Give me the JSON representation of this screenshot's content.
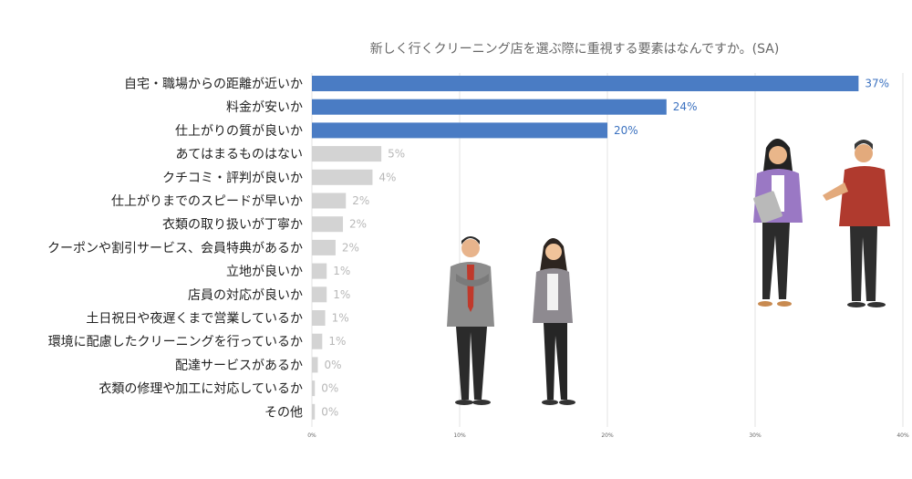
{
  "chart_data": {
    "type": "bar",
    "orientation": "horizontal",
    "title": "新しく行くクリーニング店を選ぶ際に重視する要素はなんですか。(SA)",
    "categories": [
      "自宅・職場からの距離が近いか",
      "料金が安いか",
      "仕上がりの質が良いか",
      "あてはまるものはない",
      "クチコミ・評判が良いか",
      "仕上がりまでのスピードが早いか",
      "衣類の取り扱いが丁寧か",
      "クーポンや割引サービス、会員特典があるか",
      "立地が良いか",
      "店員の対応が良いか",
      "土日祝日や夜遅くまで営業しているか",
      "環境に配慮したクリーニングを行っているか",
      "配達サービスがあるか",
      "衣類の修理や加工に対応しているか",
      "その他"
    ],
    "values": [
      37,
      24,
      20,
      4.7,
      4.1,
      2.3,
      2.1,
      1.6,
      1.0,
      1.0,
      0.9,
      0.7,
      0.4,
      0.2,
      0.2
    ],
    "value_labels": [
      "37%",
      "24%",
      "20%",
      "5%",
      "4%",
      "2%",
      "2%",
      "2%",
      "1%",
      "1%",
      "1%",
      "1%",
      "0%",
      "0%",
      "0%"
    ],
    "xlim": [
      0,
      40
    ],
    "x_ticks": [
      "0%",
      "10%",
      "20%",
      "30%",
      "40%"
    ],
    "grid": true,
    "highlight_count": 3,
    "colors": {
      "highlight": "#4a7cc4",
      "normal": "#d3d3d3",
      "label_highlight": "#3c72c0",
      "label_normal": "#b8b8b8"
    }
  }
}
